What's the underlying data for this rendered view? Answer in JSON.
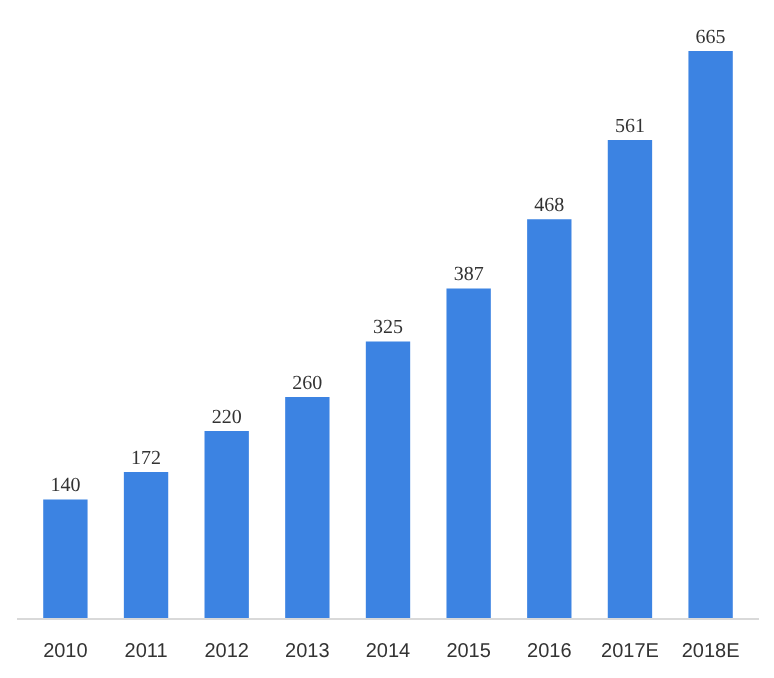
{
  "chart_data": {
    "type": "bar",
    "categories": [
      "2010",
      "2011",
      "2012",
      "2013",
      "2014",
      "2015",
      "2016",
      "2017E",
      "2018E"
    ],
    "values": [
      140,
      172,
      220,
      260,
      325,
      387,
      468,
      561,
      665
    ],
    "color": "#3c83e2",
    "data_labels": true,
    "grid": false
  }
}
